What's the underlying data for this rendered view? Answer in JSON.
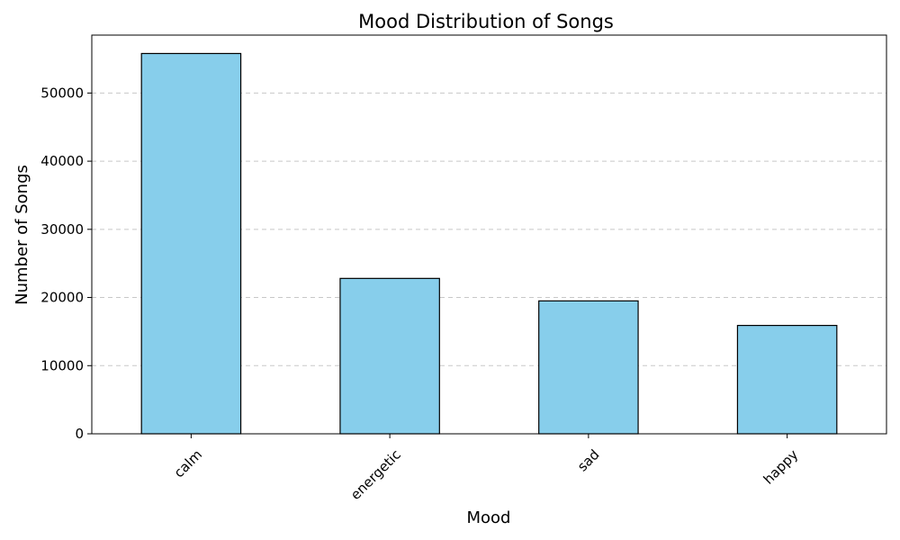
{
  "chart_data": {
    "type": "bar",
    "title": "Mood Distribution of Songs",
    "xlabel": "Mood",
    "ylabel": "Number of Songs",
    "categories": [
      "calm",
      "energetic",
      "sad",
      "happy"
    ],
    "values": [
      55800,
      22800,
      19500,
      15900
    ],
    "ylim": [
      0,
      58500
    ],
    "yticks": [
      0,
      10000,
      20000,
      30000,
      40000,
      50000
    ],
    "ytick_labels": [
      "0",
      "10000",
      "20000",
      "30000",
      "40000",
      "50000"
    ],
    "grid": "y-dashed",
    "legend": "none",
    "colors": {
      "bar_fill": "#87CEEB",
      "bar_edge": "#000000",
      "grid": "#c8c8c8"
    }
  }
}
